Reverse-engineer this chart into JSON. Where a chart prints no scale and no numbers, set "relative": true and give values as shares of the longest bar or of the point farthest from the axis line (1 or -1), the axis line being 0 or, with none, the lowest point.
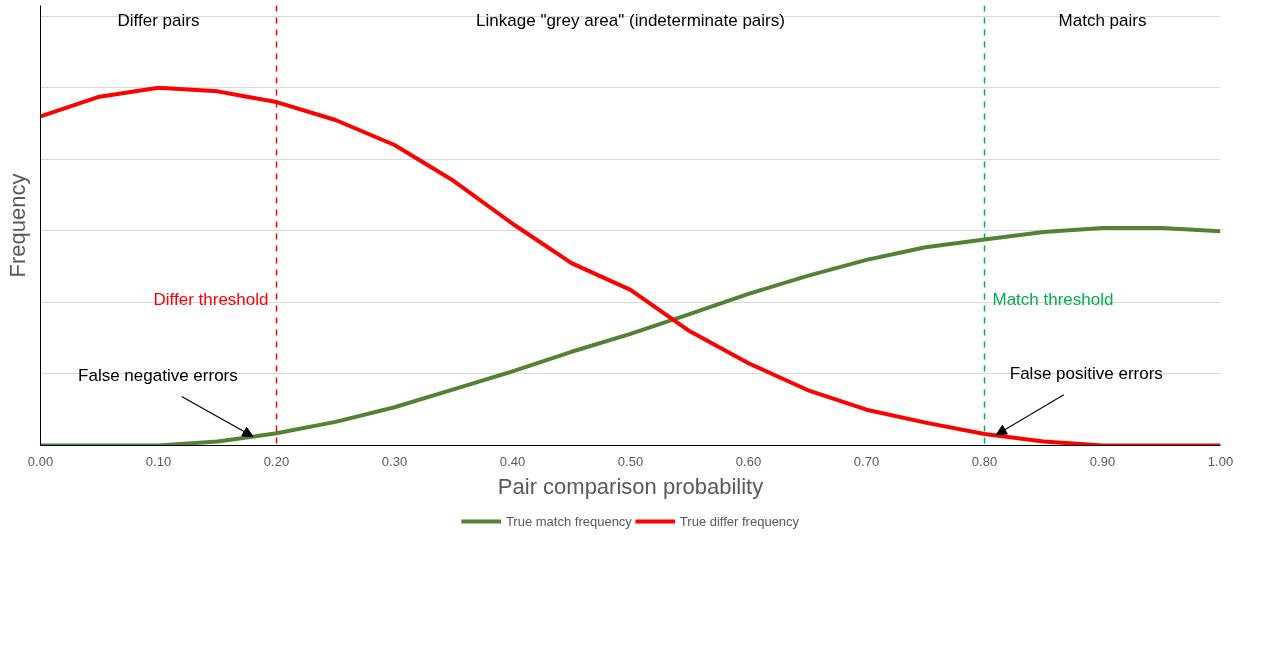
{
  "chart_data": {
    "type": "line",
    "relative": true,
    "xlabel": "Pair comparison probability",
    "ylabel": "Frequency",
    "x": [
      0.0,
      0.05,
      0.1,
      0.15,
      0.2,
      0.25,
      0.3,
      0.35,
      0.4,
      0.45,
      0.5,
      0.55,
      0.6,
      0.65,
      0.7,
      0.75,
      0.8,
      0.85,
      0.9,
      0.95,
      1.0
    ],
    "xlim": [
      0,
      1
    ],
    "xticks": [
      {
        "value": 0,
        "label": "0.00"
      },
      {
        "value": 0.1,
        "label": "0.10"
      },
      {
        "value": 0.2,
        "label": "0.20"
      },
      {
        "value": 0.3,
        "label": "0.30"
      },
      {
        "value": 0.4,
        "label": "0.40"
      },
      {
        "value": 0.5,
        "label": "0.50"
      },
      {
        "value": 0.6,
        "label": "0.60"
      },
      {
        "value": 0.7,
        "label": "0.70"
      },
      {
        "value": 0.8,
        "label": "0.80"
      },
      {
        "value": 0.9,
        "label": "0.90"
      },
      {
        "value": 1,
        "label": "1.00"
      }
    ],
    "series": [
      {
        "name": "True match frequency",
        "color": "#548235",
        "values": [
          0,
          0,
          0,
          0.011,
          0.034,
          0.066,
          0.107,
          0.157,
          0.207,
          0.262,
          0.312,
          0.367,
          0.424,
          0.474,
          0.519,
          0.554,
          0.576,
          0.597,
          0.608,
          0.608,
          0.599
        ]
      },
      {
        "name": "True differ frequency",
        "color": "#ff0000",
        "values": [
          0.92,
          0.975,
          1.0,
          0.99,
          0.96,
          0.91,
          0.84,
          0.74,
          0.62,
          0.51,
          0.435,
          0.32,
          0.23,
          0.155,
          0.1,
          0.064,
          0.032,
          0.011,
          0,
          0,
          0
        ]
      }
    ],
    "ref_lines": [
      {
        "axis": "x",
        "value": 0.2,
        "label": "Differ threshold",
        "color": "#ff0000",
        "line_style": "dashed"
      },
      {
        "axis": "x",
        "value": 0.8,
        "label": "Match threshold",
        "color": "#00b050",
        "line_style": "dashed"
      }
    ],
    "annotations": [
      "Differ pairs",
      "Linkage \"grey area\" (indeterminate pairs)",
      "Match pairs",
      {
        "text": "False negative errors",
        "x": 0.18,
        "y": 0.025
      },
      {
        "text": "False positive errors",
        "x": 0.81,
        "y": 0.03
      }
    ],
    "grid": "y",
    "legend": "bottom",
    "line_style": "solid",
    "marker": "none"
  }
}
